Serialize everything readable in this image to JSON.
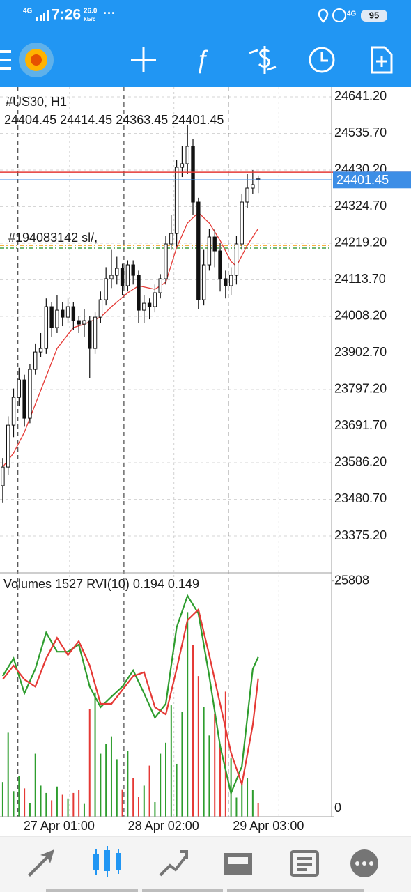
{
  "status_bar": {
    "network": "4G",
    "time": "7:26",
    "speed": "26.0",
    "speed_unit": "КБ/с",
    "more": "···",
    "network2": "4G",
    "battery": "95"
  },
  "chart_data": [
    {
      "type": "candlestick",
      "title": "#US30, H1",
      "open": [
        23520,
        23573.9,
        23694.5,
        23774.9,
        23825.1,
        23714.6,
        23855.3,
        23905.5,
        23915.6,
        24036.2,
        23975.9,
        24026.1,
        24006.0,
        24036.2,
        23996.0,
        23985.9,
        23996.0,
        23915.6,
        24006.0,
        24056.3,
        24116.6,
        24126.6,
        24146.7,
        24096.5,
        24156.8,
        24126.6,
        24026.1,
        24046.2,
        24036.2,
        24076.4,
        24116.6,
        24217.1,
        24247.2,
        24438.2,
        24448.2,
        24498.5,
        24337.7,
        24056.3,
        24156.8,
        24237.2,
        24197.0,
        24116.6,
        24096.5,
        24126.6,
        24217.1,
        24337.7,
        24377.9,
        24404.45
      ],
      "high": [
        23600,
        23720,
        23800,
        23860,
        23840,
        23870,
        23930,
        23960,
        24060,
        24050,
        24070,
        24050,
        24060,
        24050,
        24010,
        24030,
        24010,
        24020,
        24080,
        24150,
        24200,
        24180,
        24160,
        24170,
        24170,
        24140,
        24070,
        24060,
        24100,
        24130,
        24240,
        24300,
        24460,
        24500,
        24560,
        24520,
        24350,
        24200,
        24260,
        24260,
        24220,
        24140,
        24150,
        24240,
        24360,
        24420,
        24430,
        24414.45
      ],
      "low": [
        23470,
        23550,
        23660,
        23750,
        23690,
        23700,
        23840,
        23890,
        23900,
        23950,
        23960,
        23980,
        23990,
        23970,
        23960,
        23950,
        23830,
        23900,
        23990,
        24040,
        24090,
        24100,
        24070,
        24080,
        24100,
        23990,
        23990,
        24000,
        24020,
        24060,
        24100,
        24200,
        24210,
        24410,
        24420,
        24300,
        24030,
        24040,
        24140,
        24150,
        24080,
        24060,
        24070,
        24100,
        24200,
        24320,
        24360,
        24363.45
      ],
      "close": [
        23573.9,
        23694.5,
        23774.9,
        23825.1,
        23714.6,
        23855.3,
        23905.5,
        23915.6,
        24036.2,
        23975.9,
        24026.1,
        24006.0,
        24036.2,
        23996.0,
        23985.9,
        23996.0,
        23915.6,
        24006.0,
        24056.3,
        24116.6,
        24126.6,
        24146.7,
        24096.5,
        24156.8,
        24126.6,
        24026.1,
        24046.2,
        24036.2,
        24076.4,
        24116.6,
        24217.1,
        24247.2,
        24438.2,
        24448.2,
        24498.5,
        24337.7,
        24056.3,
        24156.8,
        24237.2,
        24197.0,
        24116.6,
        24096.5,
        24126.6,
        24217.1,
        24337.7,
        24377.9,
        24387.9,
        24401.45
      ],
      "ma": {
        "color": "#e53935",
        "x": [
          0,
          2,
          4,
          6,
          8,
          10,
          13,
          15,
          18,
          20,
          23,
          25,
          28,
          30,
          32,
          34,
          36,
          38,
          40,
          42,
          43,
          45,
          47
        ],
        "values": [
          23573.9,
          23614.1,
          23674.4,
          23754.8,
          23835.2,
          23915.6,
          23975.9,
          23985.9,
          24006.0,
          24036.2,
          24076.4,
          24096.5,
          24086.4,
          24106.5,
          24207.0,
          24277.4,
          24307.5,
          24277.4,
          24227.1,
          24166.8,
          24152.8,
          24213.1,
          24261.3
        ]
      },
      "ask_line": {
        "value": 24424,
        "color": "#e53935"
      },
      "bid_color": "#3d8ee6",
      "order_label": "#194083142 sl/,",
      "levels": [
        {
          "value": 24213,
          "color": "#f5a623"
        },
        {
          "value": 24205,
          "color": "#43a047"
        }
      ],
      "xlim": [
        -0.5,
        60.5
      ],
      "ylim": [
        23268.7,
        24669.3
      ],
      "yticks": [
        {
          "value": 24641.2,
          "label": "24641.20"
        },
        {
          "value": 24535.7,
          "label": "24535.70"
        },
        {
          "value": 24430.2,
          "label": "24430.20"
        },
        {
          "value": 24324.7,
          "label": "24324.70"
        },
        {
          "value": 24219.2,
          "label": "24219.20"
        },
        {
          "value": 24113.7,
          "label": "24113.70"
        },
        {
          "value": 24008.2,
          "label": "24008.20"
        },
        {
          "value": 23902.7,
          "label": "23902.70"
        },
        {
          "value": 23797.2,
          "label": "23797.20"
        },
        {
          "value": 23691.7,
          "label": "23691.70"
        },
        {
          "value": 23586.2,
          "label": "23586.20"
        },
        {
          "value": 23480.7,
          "label": "23480.70"
        },
        {
          "value": 23375.2,
          "label": "23375.20"
        }
      ],
      "xticks": [
        {
          "value": 12.3,
          "label": "27 Apr 01:00"
        },
        {
          "value": 31.5,
          "label": "28 Apr 02:00"
        },
        {
          "value": 50.8,
          "label": "29 Apr 03:00"
        }
      ],
      "day_separators": [
        2.8,
        22.3,
        41.5
      ],
      "grid": true
    },
    {
      "type": "volume_rvi",
      "label": "Volumes",
      "indicator": "RVI(10)",
      "volumes": [
        3800,
        9200,
        2800,
        4500,
        3100,
        1500,
        6900,
        3400,
        2600,
        1800,
        3300,
        2400,
        2000,
        2600,
        2900,
        1400,
        11800,
        13600,
        6900,
        8000,
        8800,
        6300,
        3000,
        7200,
        4200,
        2200,
        3400,
        5600,
        1600,
        6900,
        8100,
        12200,
        5800,
        11500,
        22400,
        18800,
        15400,
        12000,
        8900,
        11300,
        7900,
        13700,
        6400,
        2100,
        3600,
        4200,
        2900,
        1527
      ],
      "up_color": "#2e9d2e",
      "down_color": "#e53935",
      "ylim": [
        0,
        26700
      ],
      "yticks": [
        0,
        25808
      ],
      "y2lim": [
        -0.14,
        0.37
      ],
      "series": [
        {
          "color": "#2e9d2e",
          "axis": "y2",
          "x": [
            0,
            2,
            4,
            6,
            8,
            10,
            12,
            14,
            16,
            18,
            20,
            22,
            24,
            26,
            28,
            30,
            32,
            34,
            36,
            38,
            40,
            42,
            44,
            46,
            47
          ],
          "values": [
            0.154,
            0.191,
            0.118,
            0.169,
            0.245,
            0.205,
            0.205,
            0.22,
            0.132,
            0.089,
            0.111,
            0.132,
            0.166,
            0.118,
            0.067,
            0.096,
            0.256,
            0.322,
            0.285,
            0.154,
            0.008,
            -0.091,
            -0.035,
            0.169,
            0.194
          ]
        },
        {
          "color": "#e53935",
          "axis": "y2",
          "x": [
            0,
            2,
            4,
            6,
            8,
            10,
            12,
            14,
            16,
            18,
            20,
            22,
            24,
            26,
            28,
            30,
            32,
            34,
            36,
            38,
            40,
            42,
            44,
            46,
            47
          ],
          "values": [
            0.147,
            0.176,
            0.147,
            0.132,
            0.191,
            0.234,
            0.198,
            0.227,
            0.176,
            0.096,
            0.096,
            0.125,
            0.154,
            0.162,
            0.089,
            0.074,
            0.169,
            0.271,
            0.293,
            0.198,
            0.096,
            -0.006,
            -0.072,
            0.052,
            0.149
          ]
        }
      ]
    }
  ]
}
